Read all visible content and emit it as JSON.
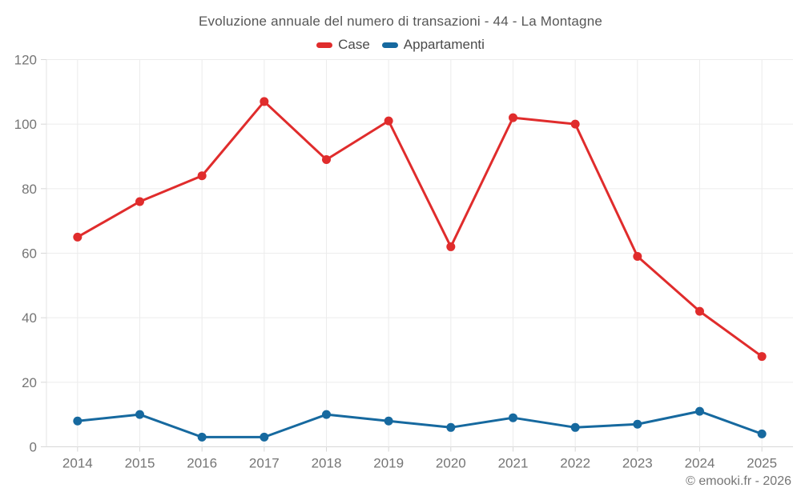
{
  "chart_data": {
    "type": "line",
    "title": "Evoluzione annuale del numero di transazioni - 44 - La Montagne",
    "categories": [
      "2014",
      "2015",
      "2016",
      "2017",
      "2018",
      "2019",
      "2020",
      "2021",
      "2022",
      "2023",
      "2024",
      "2025"
    ],
    "series": [
      {
        "name": "Case",
        "color": "#e02c2c",
        "values": [
          65,
          76,
          84,
          107,
          89,
          101,
          62,
          102,
          100,
          59,
          42,
          28
        ]
      },
      {
        "name": "Appartamenti",
        "color": "#16699f",
        "values": [
          8,
          10,
          3,
          3,
          10,
          8,
          6,
          9,
          6,
          7,
          11,
          4
        ]
      }
    ],
    "xlabel": "",
    "ylabel": "",
    "ylim": [
      0,
      120
    ],
    "ytick_step": 20,
    "grid": true,
    "legend_position": "top"
  },
  "footer": {
    "credit": "© emooki.fr - 2026"
  },
  "style_colors": {
    "grid": "#ececec",
    "axis": "#d7d7d7",
    "text": "#757575"
  }
}
